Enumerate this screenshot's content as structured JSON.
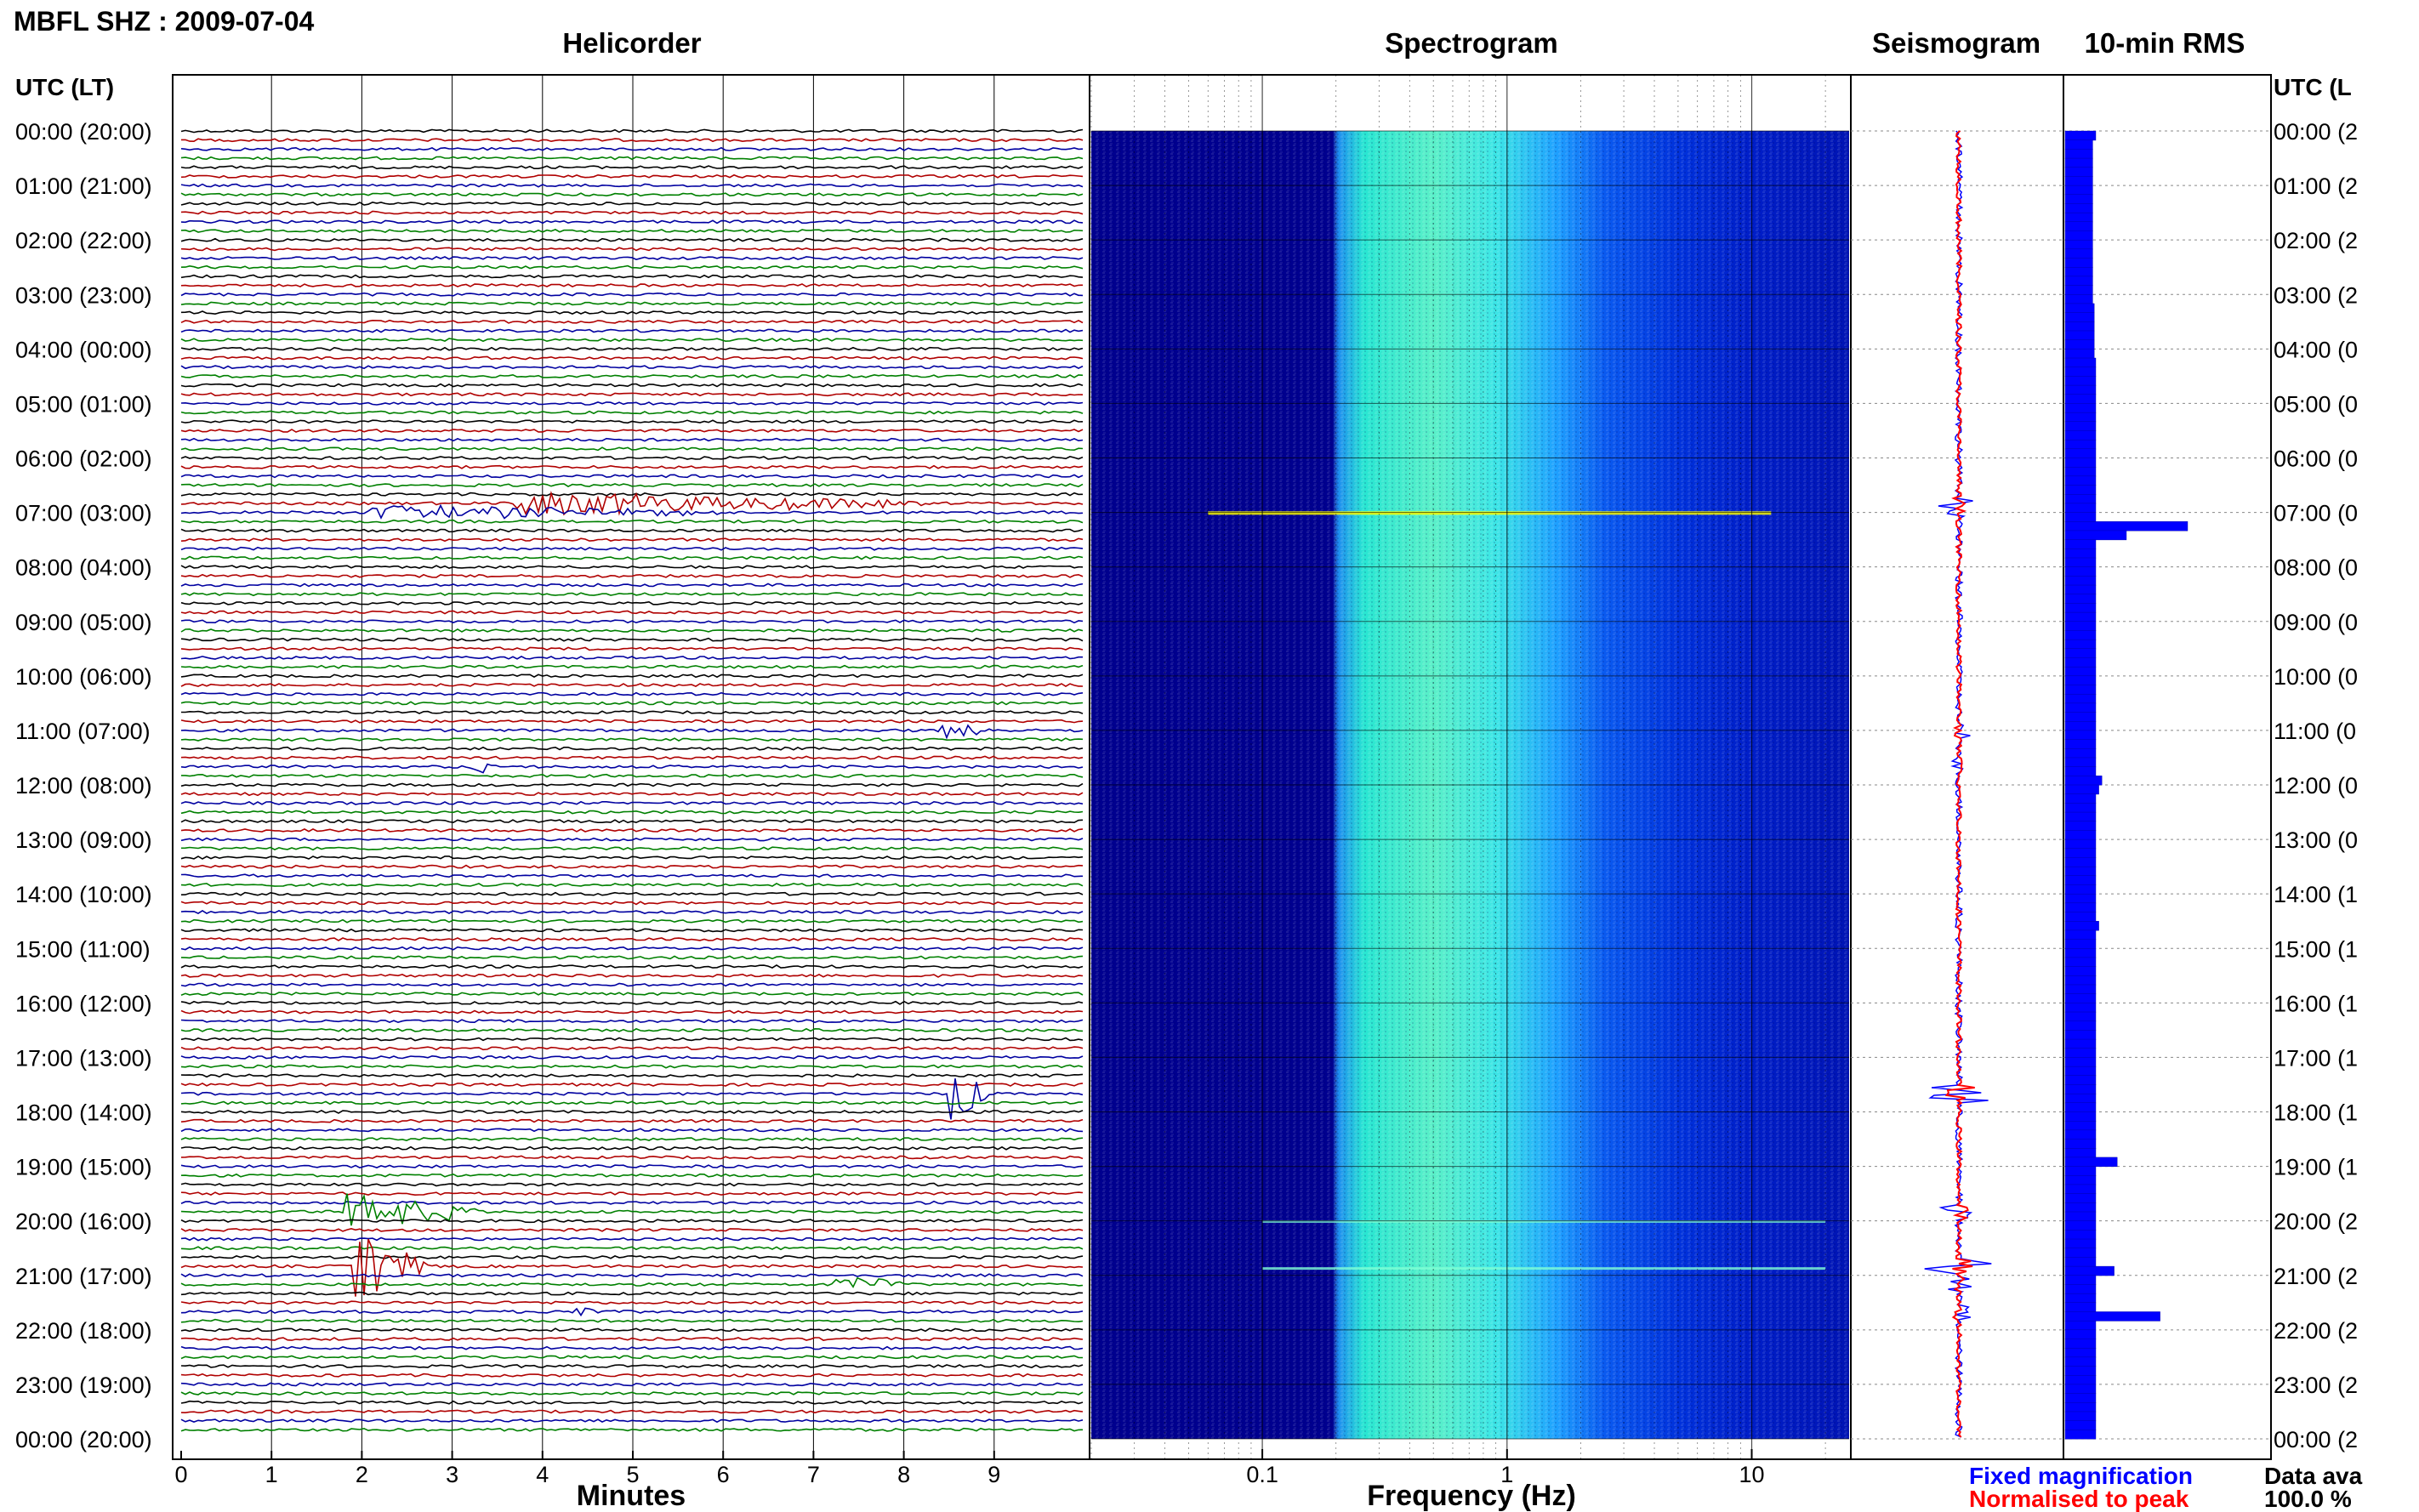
{
  "header": {
    "station": "MBFL SHZ : 2009-07-04",
    "utc_label": "UTC (LT)",
    "utc_label_right": "UTC (L",
    "panel_titles": [
      "Helicorder",
      "Spectrogram",
      "Seismogram",
      "10-min RMS"
    ]
  },
  "legend": {
    "fixed": "Fixed magnification",
    "normalised": "Normalised to peak",
    "availability_label": "Data ava",
    "availability_value": "100.0 %"
  },
  "colors": {
    "trace_cycle": [
      "#000000",
      "#b00000",
      "#0000a0",
      "#008000"
    ],
    "fixed": "#0000ff",
    "normalised": "#ff0000",
    "rms": "#0000ff",
    "spectrogram_low": "#00008f",
    "spectrogram_high": "#ffff00"
  },
  "chart_data": [
    {
      "type": "line",
      "title": "Helicorder",
      "xlabel": "Minutes",
      "x_ticks": [
        "0",
        "1",
        "2",
        "3",
        "4",
        "5",
        "6",
        "7",
        "8",
        "9"
      ],
      "xlim": [
        0,
        10
      ],
      "traces_per_hour": 6,
      "hour_labels": [
        "00:00 (20:00)",
        "01:00 (21:00)",
        "02:00 (22:00)",
        "03:00 (23:00)",
        "04:00 (00:00)",
        "05:00 (01:00)",
        "06:00 (02:00)",
        "07:00 (03:00)",
        "08:00 (04:00)",
        "09:00 (05:00)",
        "10:00 (06:00)",
        "11:00 (07:00)",
        "12:00 (08:00)",
        "13:00 (09:00)",
        "14:00 (10:00)",
        "15:00 (11:00)",
        "16:00 (12:00)",
        "17:00 (13:00)",
        "18:00 (14:00)",
        "19:00 (15:00)",
        "20:00 (16:00)",
        "21:00 (17:00)",
        "22:00 (18:00)",
        "23:00 (19:00)",
        "00:00 (20:00)"
      ],
      "hour_labels_right": [
        "00:00 (2",
        "01:00 (2",
        "02:00 (2",
        "03:00 (2",
        "04:00 (0",
        "05:00 (0",
        "06:00 (0",
        "07:00 (0",
        "08:00 (0",
        "09:00 (0",
        "10:00 (0",
        "11:00 (0",
        "12:00 (0",
        "13:00 (0",
        "14:00 (1",
        "15:00 (1",
        "16:00 (1",
        "17:00 (1",
        "18:00 (1",
        "19:00 (1",
        "20:00 (2",
        "21:00 (2",
        "22:00 (2",
        "23:00 (2",
        "00:00 (2"
      ],
      "events": [
        {
          "hour": 6.83,
          "minute": 3.7,
          "duration": 4.5,
          "amp": 1.0
        },
        {
          "hour": 7.0,
          "minute": 2.0,
          "duration": 4.0,
          "amp": 0.6
        },
        {
          "hour": 11.0,
          "minute": 8.4,
          "duration": 0.6,
          "amp": 0.8
        },
        {
          "hour": 11.67,
          "minute": 3.2,
          "duration": 0.3,
          "amp": 0.6
        },
        {
          "hour": 17.67,
          "minute": 8.5,
          "duration": 0.4,
          "amp": 2.5
        },
        {
          "hour": 19.83,
          "minute": 1.8,
          "duration": 1.5,
          "amp": 1.5
        },
        {
          "hour": 20.83,
          "minute": 1.9,
          "duration": 0.8,
          "amp": 3.0
        },
        {
          "hour": 21.17,
          "minute": 7.2,
          "duration": 0.8,
          "amp": 0.8
        },
        {
          "hour": 21.67,
          "minute": 4.3,
          "duration": 0.3,
          "amp": 0.8
        }
      ]
    },
    {
      "type": "heatmap",
      "title": "Spectrogram",
      "xlabel": "Frequency (Hz)",
      "x_scale": "log",
      "xlim": [
        0.02,
        25
      ],
      "x_ticks": [
        0.1,
        1,
        10
      ],
      "x_tick_labels": [
        "0.1",
        "1",
        "10"
      ],
      "energy_band_hz": [
        0.2,
        2.5
      ]
    },
    {
      "type": "line",
      "title": "Seismogram",
      "series": [
        {
          "name": "Fixed magnification"
        },
        {
          "name": "Normalised to peak"
        }
      ]
    },
    {
      "type": "bar",
      "title": "10-min RMS",
      "orientation": "horizontal",
      "bins_per_hour": 6,
      "values": [
        1.0,
        0.9,
        0.9,
        0.9,
        0.9,
        0.9,
        0.9,
        0.9,
        0.9,
        0.9,
        0.9,
        0.9,
        0.9,
        0.9,
        0.9,
        0.9,
        0.9,
        0.9,
        0.9,
        0.95,
        0.95,
        0.95,
        0.95,
        0.95,
        0.95,
        1.0,
        1.0,
        1.0,
        1.0,
        1.0,
        1.0,
        1.0,
        1.0,
        1.0,
        1.0,
        1.0,
        1.0,
        1.0,
        1.0,
        1.0,
        1.0,
        1.0,
        1.0,
        4.0,
        2.0,
        1.0,
        1.0,
        1.0,
        1.0,
        1.0,
        1.0,
        1.0,
        1.0,
        1.0,
        1.0,
        1.0,
        1.0,
        1.0,
        1.0,
        1.0,
        1.0,
        1.0,
        1.0,
        1.0,
        1.0,
        1.0,
        1.0,
        1.0,
        1.0,
        1.0,
        1.0,
        1.2,
        1.1,
        1.0,
        1.0,
        1.0,
        1.0,
        1.0,
        1.0,
        1.0,
        1.0,
        1.0,
        1.0,
        1.0,
        1.0,
        1.0,
        1.0,
        1.1,
        1.0,
        1.0,
        1.0,
        1.0,
        1.0,
        1.0,
        1.0,
        1.0,
        1.0,
        1.0,
        1.0,
        1.0,
        1.0,
        1.0,
        1.0,
        1.0,
        1.0,
        1.0,
        1.0,
        1.0,
        1.0,
        1.0,
        1.0,
        1.0,
        1.0,
        1.7,
        1.0,
        1.0,
        1.0,
        1.0,
        1.0,
        1.0,
        1.0,
        1.0,
        1.0,
        1.0,
        1.0,
        1.6,
        1.0,
        1.0,
        1.0,
        1.0,
        3.1,
        1.0,
        1.0,
        1.0,
        1.0,
        1.0,
        1.0,
        1.0,
        1.0,
        1.0,
        1.0,
        1.0,
        1.0,
        1.0
      ]
    }
  ]
}
